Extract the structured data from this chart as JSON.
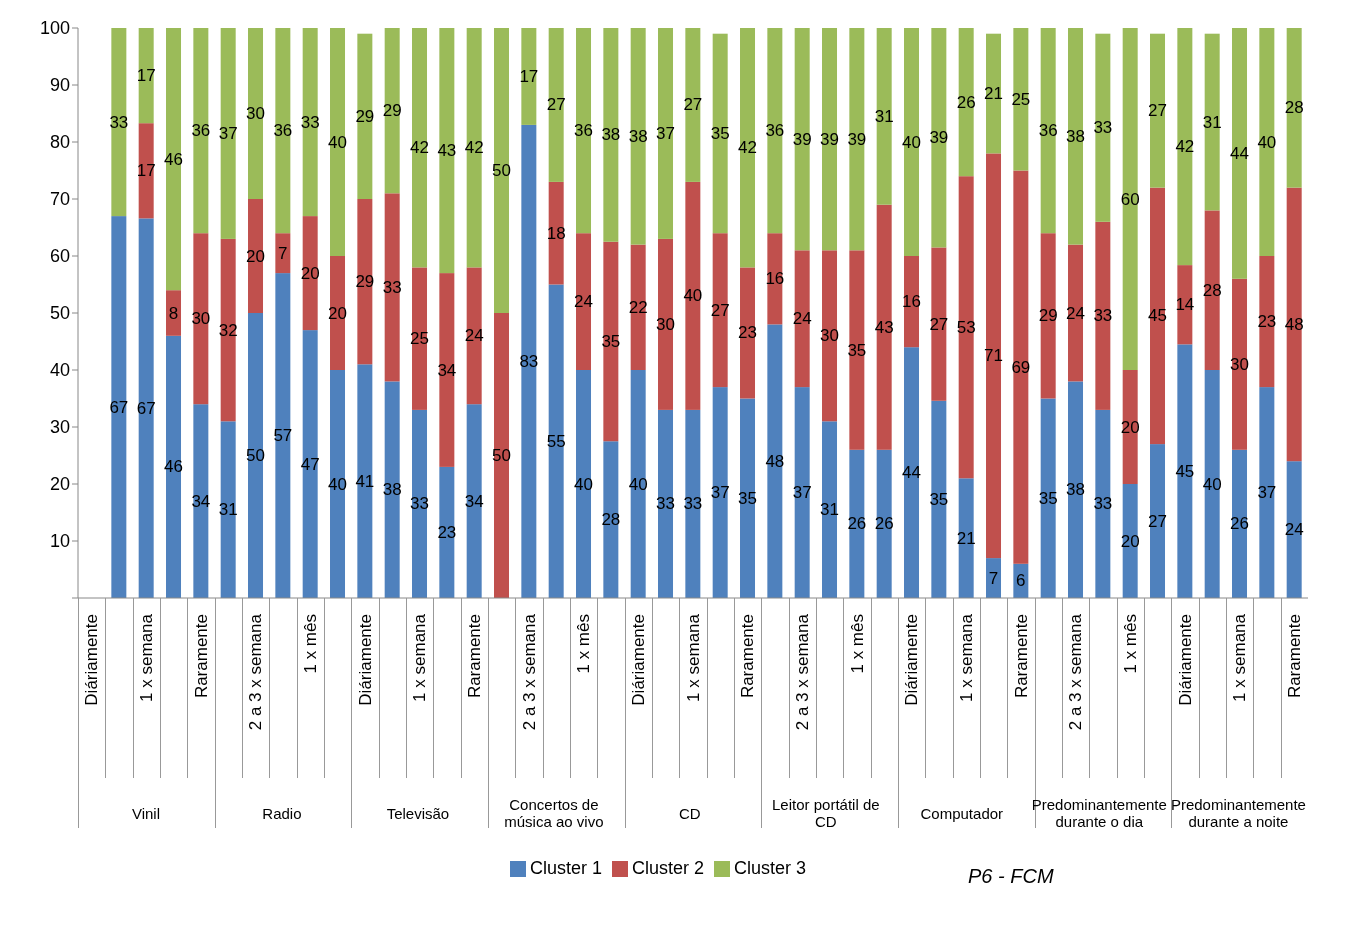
{
  "chart_data": {
    "type": "bar",
    "stacked": true,
    "categories": [
      "Diáriamente",
      null,
      "1 x semana",
      null,
      "Raramente",
      null,
      "2 a 3 x semana",
      null,
      "1 x mês",
      null,
      "Diáriamente",
      null,
      "1 x semana",
      null,
      "Raramente",
      null,
      "2 a 3 x semana",
      null,
      "1 x mês",
      null,
      "Diáriamente",
      null,
      "1 x semana",
      null,
      "Raramente",
      null,
      "2 a 3 x semana",
      null,
      "1 x mês",
      null,
      "Diáriamente",
      null,
      "1 x semana",
      null,
      "Raramente",
      null,
      "2 a 3 x semana",
      null,
      "1 x mês",
      null,
      "Diáriamente",
      null,
      "1 x semana",
      null,
      "Raramente"
    ],
    "series": [
      {
        "name": "Cluster 1",
        "color": "#4f81bd",
        "values": [
          null,
          67,
          66.6,
          46,
          34,
          31,
          50,
          57,
          47,
          40,
          41,
          38,
          33,
          23,
          34,
          null,
          83,
          55,
          40,
          27.5,
          40,
          33,
          33,
          37,
          35,
          48,
          37,
          31,
          26,
          26,
          44,
          34.6,
          21,
          7,
          6,
          35,
          38,
          33,
          20,
          27,
          44.5,
          40,
          26,
          37,
          24
        ],
        "value_labels": [
          null,
          "67",
          "67",
          "46",
          "34",
          "31",
          "50",
          "57",
          "47",
          "40",
          "41",
          "38",
          "33",
          "23",
          "34",
          null,
          "83",
          "55",
          "40",
          "28",
          "40",
          "33",
          "33",
          "37",
          "35",
          "48",
          "37",
          "31",
          "26",
          "26",
          "44",
          "35",
          "21",
          "7",
          "6",
          "35",
          "38",
          "33",
          "20",
          "27",
          "45",
          "40",
          "26",
          "37",
          "24"
        ]
      },
      {
        "name": "Cluster 2",
        "color": "#c0504d",
        "values": [
          null,
          null,
          16.7,
          8,
          30,
          32,
          20,
          7,
          20,
          20,
          29,
          33,
          25,
          34,
          24,
          50,
          null,
          18,
          24,
          35,
          22,
          30,
          40,
          27,
          23,
          16,
          24,
          30,
          35,
          43,
          16,
          26.9,
          53,
          71,
          69,
          29,
          24,
          33,
          20,
          45,
          13.9,
          28,
          30,
          23,
          48
        ],
        "value_labels": [
          null,
          null,
          "17",
          "8",
          "30",
          "32",
          "20",
          "7",
          "20",
          "20",
          "29",
          "33",
          "25",
          "34",
          "24",
          "50",
          null,
          "18",
          "24",
          "35",
          "22",
          "30",
          "40",
          "27",
          "23",
          "16",
          "24",
          "30",
          "35",
          "43",
          "16",
          "27",
          "53",
          "71",
          "69",
          "29",
          "24",
          "33",
          "20",
          "45",
          "14",
          "28",
          "30",
          "23",
          "48"
        ]
      },
      {
        "name": "Cluster 3",
        "color": "#9bbb59",
        "values": [
          null,
          33,
          16.7,
          46,
          36,
          37,
          30,
          36,
          33,
          40,
          29,
          29,
          42,
          43,
          42,
          50,
          17,
          27,
          36,
          37.5,
          38,
          37,
          27,
          35,
          42,
          36,
          39,
          39,
          39,
          31,
          40,
          38.5,
          26,
          21,
          25,
          36,
          38,
          33,
          60,
          27,
          41.6,
          31,
          44,
          40,
          28
        ],
        "value_labels": [
          null,
          "33",
          "17",
          "46",
          "36",
          "37",
          "30",
          "36",
          "33",
          "40",
          "29",
          "29",
          "42",
          "43",
          "42",
          "50",
          "17",
          "27",
          "36",
          "38",
          "38",
          "37",
          "27",
          "35",
          "42",
          "36",
          "39",
          "39",
          "39",
          "31",
          "40",
          "39",
          "26",
          "21",
          "25",
          "36",
          "38",
          "33",
          "60",
          "27",
          "42",
          "31",
          "44",
          "40",
          "28"
        ]
      }
    ],
    "ylim": [
      0,
      100
    ],
    "yticks": [
      {
        "value": 0,
        "label": null
      },
      10,
      20,
      30,
      40,
      50,
      60,
      70,
      80,
      90,
      100
    ],
    "grid": false,
    "legend": "bottom",
    "annotations": [
      "Vinil",
      "Radio",
      "Televisão",
      "Concertos de música ao vivo",
      "CD",
      "Leitor portátil de CD",
      "Computador",
      "Predominantemente durante o dia",
      "Predominantemente durante a noite",
      "P6 - FCM"
    ]
  }
}
